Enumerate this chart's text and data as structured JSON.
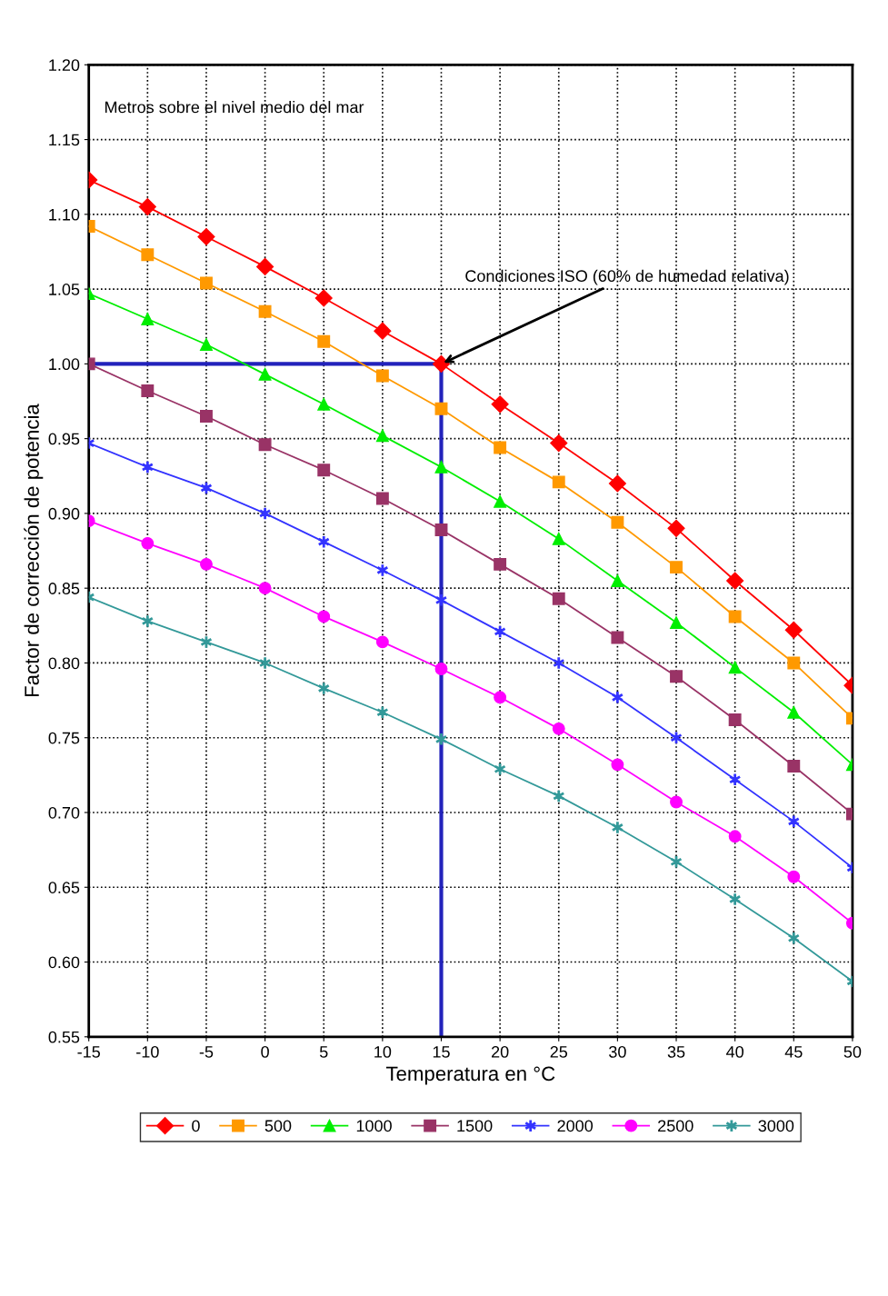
{
  "chart_data": {
    "type": "line",
    "xlabel": "Temperatura en °C",
    "ylabel": "Factor de corrección de potencia",
    "x": [
      -15,
      -10,
      -5,
      0,
      5,
      10,
      15,
      20,
      25,
      30,
      35,
      40,
      45,
      50
    ],
    "xlim": [
      -15,
      50
    ],
    "xticks": [
      -15,
      -10,
      -5,
      0,
      5,
      10,
      15,
      20,
      25,
      30,
      35,
      40,
      45,
      50
    ],
    "ylim": [
      0.55,
      1.2
    ],
    "yticks": [
      {
        "value": 0.55,
        "label": "0.55"
      },
      {
        "value": 0.6,
        "label": "0.60"
      },
      {
        "value": 0.65,
        "label": "0.65"
      },
      {
        "value": 0.7,
        "label": "0.70"
      },
      {
        "value": 0.75,
        "label": "0.75"
      },
      {
        "value": 0.8,
        "label": "0.80"
      },
      {
        "value": 0.85,
        "label": "0.85"
      },
      {
        "value": 0.9,
        "label": "0.90"
      },
      {
        "value": 0.95,
        "label": "0.95"
      },
      {
        "value": 1.0,
        "label": "1.00"
      },
      {
        "value": 1.05,
        "label": "1.05"
      },
      {
        "value": 1.1,
        "label": "1.10"
      },
      {
        "value": 1.15,
        "label": "1.15"
      },
      {
        "value": 1.2,
        "label": "1.20"
      }
    ],
    "grid": true,
    "legend": "bottom",
    "line_style": "solid",
    "series": [
      {
        "name": "0",
        "color": "#ff0000",
        "marker": "diamond",
        "values": [
          1.123,
          1.105,
          1.085,
          1.065,
          1.044,
          1.022,
          1.0,
          0.973,
          0.947,
          0.92,
          0.89,
          0.855,
          0.822,
          0.785
        ]
      },
      {
        "name": "500",
        "color": "#ff9900",
        "marker": "square",
        "values": [
          1.092,
          1.073,
          1.054,
          1.035,
          1.015,
          0.992,
          0.97,
          0.944,
          0.921,
          0.894,
          0.864,
          0.831,
          0.8,
          0.763
        ]
      },
      {
        "name": "1000",
        "color": "#00ee00",
        "marker": "triangle",
        "values": [
          1.047,
          1.03,
          1.013,
          0.993,
          0.973,
          0.952,
          0.931,
          0.908,
          0.883,
          0.855,
          0.827,
          0.797,
          0.767,
          0.732
        ]
      },
      {
        "name": "1500",
        "color": "#993366",
        "marker": "square",
        "values": [
          1.0,
          0.982,
          0.965,
          0.946,
          0.929,
          0.91,
          0.889,
          0.866,
          0.843,
          0.817,
          0.791,
          0.762,
          0.731,
          0.699
        ]
      },
      {
        "name": "2000",
        "color": "#3333ff",
        "marker": "cross",
        "values": [
          0.947,
          0.931,
          0.917,
          0.9,
          0.881,
          0.862,
          0.842,
          0.821,
          0.8,
          0.777,
          0.75,
          0.722,
          0.694,
          0.663
        ]
      },
      {
        "name": "2500",
        "color": "#ff00ff",
        "marker": "circle",
        "values": [
          0.895,
          0.88,
          0.866,
          0.85,
          0.831,
          0.814,
          0.796,
          0.777,
          0.756,
          0.732,
          0.707,
          0.684,
          0.657,
          0.626
        ]
      },
      {
        "name": "3000",
        "color": "#339999",
        "marker": "cross",
        "values": [
          0.844,
          0.828,
          0.814,
          0.8,
          0.783,
          0.767,
          0.749,
          0.729,
          0.711,
          0.69,
          0.667,
          0.642,
          0.616,
          0.587
        ]
      }
    ],
    "ref_lines": [
      {
        "axis": "y",
        "value": 1.0,
        "color": "#2222bb"
      },
      {
        "axis": "x",
        "value": 15,
        "color": "#2222bb"
      }
    ],
    "annotations": [
      "Metros sobre el nivel medio del mar",
      {
        "text": "Condiciones ISO (60% de humedad relativa)",
        "x": 15,
        "y": 1.0
      }
    ]
  }
}
